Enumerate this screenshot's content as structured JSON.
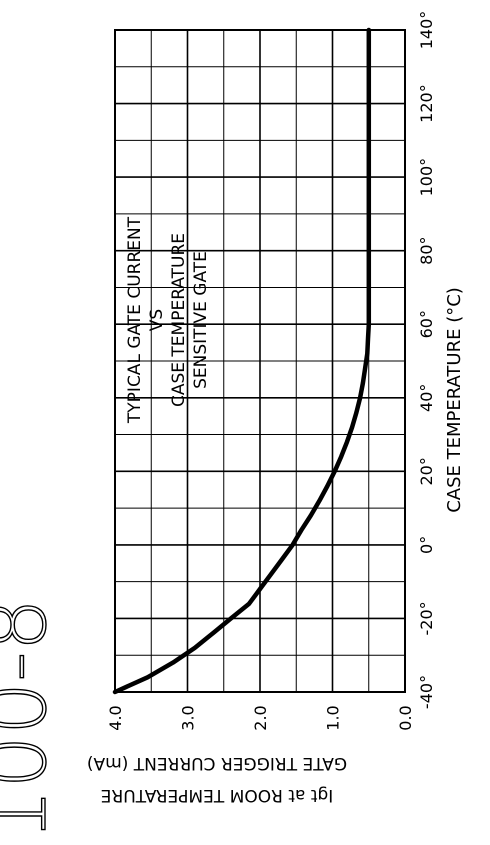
{
  "figure_number": "100-8",
  "chart_data": {
    "type": "line",
    "title_lines": [
      "TYPICAL GATE CURRENT",
      "VS",
      "CASE TEMPERATURE",
      "SENSITIVE GATE"
    ],
    "xlabel": "CASE TEMPERATURE (°C)",
    "ylabel_lines": [
      "GATE TRIGGER CURRENT (mA)",
      "Igt at ROOM TEMPERATURE"
    ],
    "xlim": [
      -40,
      140
    ],
    "ylim": [
      0,
      4
    ],
    "x_ticks": [
      "-40°",
      "-20°",
      "0°",
      "20°",
      "40°",
      "60°",
      "80°",
      "100°",
      "120°",
      "140°"
    ],
    "y_ticks": [
      "0.0",
      "1.0",
      "2.0",
      "3.0",
      "4.0"
    ],
    "grid": true,
    "series": [
      {
        "x": [
          -40,
          -36,
          -32,
          -28,
          -24,
          -20,
          -16,
          -12,
          -8,
          -4,
          0,
          4,
          8,
          12,
          16,
          20,
          24,
          28,
          32,
          36,
          40,
          44,
          48,
          52,
          56,
          60,
          70,
          80,
          90,
          100,
          110,
          120,
          130,
          140
        ],
        "y": [
          4.0,
          3.55,
          3.2,
          2.9,
          2.65,
          2.4,
          2.15,
          2.0,
          1.85,
          1.7,
          1.55,
          1.43,
          1.3,
          1.18,
          1.07,
          0.97,
          0.88,
          0.8,
          0.73,
          0.67,
          0.62,
          0.58,
          0.55,
          0.52,
          0.51,
          0.5,
          0.5,
          0.5,
          0.5,
          0.5,
          0.5,
          0.5,
          0.5,
          0.5
        ],
        "color": "#000000"
      }
    ]
  }
}
